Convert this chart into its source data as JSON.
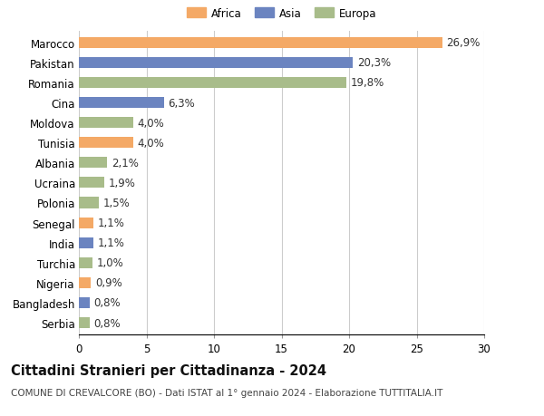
{
  "countries": [
    "Marocco",
    "Pakistan",
    "Romania",
    "Cina",
    "Moldova",
    "Tunisia",
    "Albania",
    "Ucraina",
    "Polonia",
    "Senegal",
    "India",
    "Turchia",
    "Nigeria",
    "Bangladesh",
    "Serbia"
  ],
  "values": [
    26.9,
    20.3,
    19.8,
    6.3,
    4.0,
    4.0,
    2.1,
    1.9,
    1.5,
    1.1,
    1.1,
    1.0,
    0.9,
    0.8,
    0.8
  ],
  "labels": [
    "26,9%",
    "20,3%",
    "19,8%",
    "6,3%",
    "4,0%",
    "4,0%",
    "2,1%",
    "1,9%",
    "1,5%",
    "1,1%",
    "1,1%",
    "1,0%",
    "0,9%",
    "0,8%",
    "0,8%"
  ],
  "continents": [
    "Africa",
    "Asia",
    "Europa",
    "Asia",
    "Europa",
    "Africa",
    "Europa",
    "Europa",
    "Europa",
    "Africa",
    "Asia",
    "Europa",
    "Africa",
    "Asia",
    "Europa"
  ],
  "colors": {
    "Africa": "#F4A966",
    "Asia": "#6B84C0",
    "Europa": "#A8BC8A"
  },
  "title": "Cittadini Stranieri per Cittadinanza - 2024",
  "subtitle": "COMUNE DI CREVALCORE (BO) - Dati ISTAT al 1° gennaio 2024 - Elaborazione TUTTITALIA.IT",
  "xlim": [
    0,
    30
  ],
  "xticks": [
    0,
    5,
    10,
    15,
    20,
    25,
    30
  ],
  "background_color": "#ffffff",
  "grid_color": "#cccccc",
  "bar_height": 0.55,
  "label_fontsize": 8.5,
  "tick_fontsize": 8.5,
  "title_fontsize": 10.5,
  "subtitle_fontsize": 7.5
}
